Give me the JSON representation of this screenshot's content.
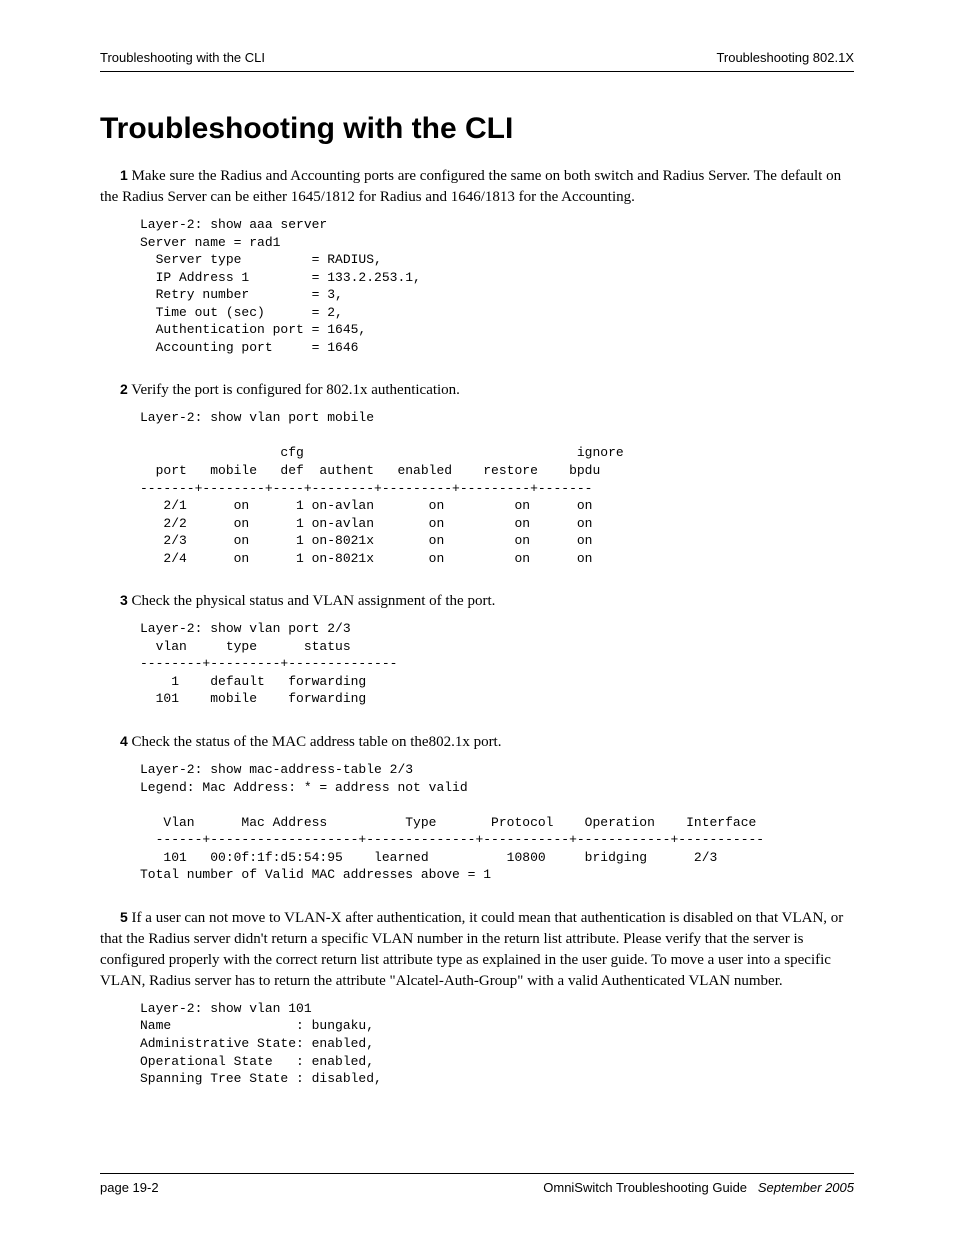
{
  "header": {
    "left": "Troubleshooting with the CLI",
    "right": "Troubleshooting 802.1X"
  },
  "title": "Troubleshooting with the CLI",
  "steps": [
    {
      "num": "1",
      "text": "Make sure the Radius and Accounting ports are configured the same on both switch and Radius Server. The default on the Radius Server can be either 1645/1812 for Radius and 1646/1813 for the Accounting.",
      "code": "Layer-2: show aaa server\nServer name = rad1\n  Server type         = RADIUS,\n  IP Address 1        = 133.2.253.1,\n  Retry number        = 3,\n  Time out (sec)      = 2,\n  Authentication port = 1645,\n  Accounting port     = 1646"
    },
    {
      "num": "2",
      "text": "Verify the port is configured for 802.1x authentication.",
      "code": "Layer-2: show vlan port mobile\n\n                  cfg                                   ignore\n  port   mobile   def  authent   enabled    restore    bpdu\n-------+--------+----+--------+---------+---------+-------\n   2/1      on      1 on-avlan       on         on      on\n   2/2      on      1 on-avlan       on         on      on\n   2/3      on      1 on-8021x       on         on      on\n   2/4      on      1 on-8021x       on         on      on"
    },
    {
      "num": "3",
      "text": "Check the physical status and VLAN assignment of the port.",
      "code": "Layer-2: show vlan port 2/3\n  vlan     type      status\n--------+---------+--------------\n    1    default   forwarding\n  101    mobile    forwarding"
    },
    {
      "num": "4",
      "text": "Check the status of the MAC address table on the802.1x port.",
      "code": "Layer-2: show mac-address-table 2/3\nLegend: Mac Address: * = address not valid\n\n   Vlan      Mac Address          Type       Protocol    Operation    Interface\n  ------+-------------------+--------------+-----------+------------+-----------\n   101   00:0f:1f:d5:54:95    learned          10800     bridging      2/3\nTotal number of Valid MAC addresses above = 1"
    },
    {
      "num": "5",
      "text": "If a user can not move to VLAN-X after authentication, it could mean that authentication is disabled on that VLAN, or that the Radius server didn't return a specific VLAN number in the return list attribute. Please verify that the server is configured properly with the correct return list attribute type as explained in the user guide. To move a user into a specific VLAN, Radius server has to return the attribute \"Alcatel-Auth-Group\" with a valid Authenticated VLAN number.",
      "code": "Layer-2: show vlan 101\nName                : bungaku,\nAdministrative State: enabled,\nOperational State   : enabled,\nSpanning Tree State : disabled,"
    }
  ],
  "footer": {
    "left": "page 19-2",
    "right_title": "OmniSwitch Troubleshooting Guide",
    "right_date": "September 2005"
  }
}
